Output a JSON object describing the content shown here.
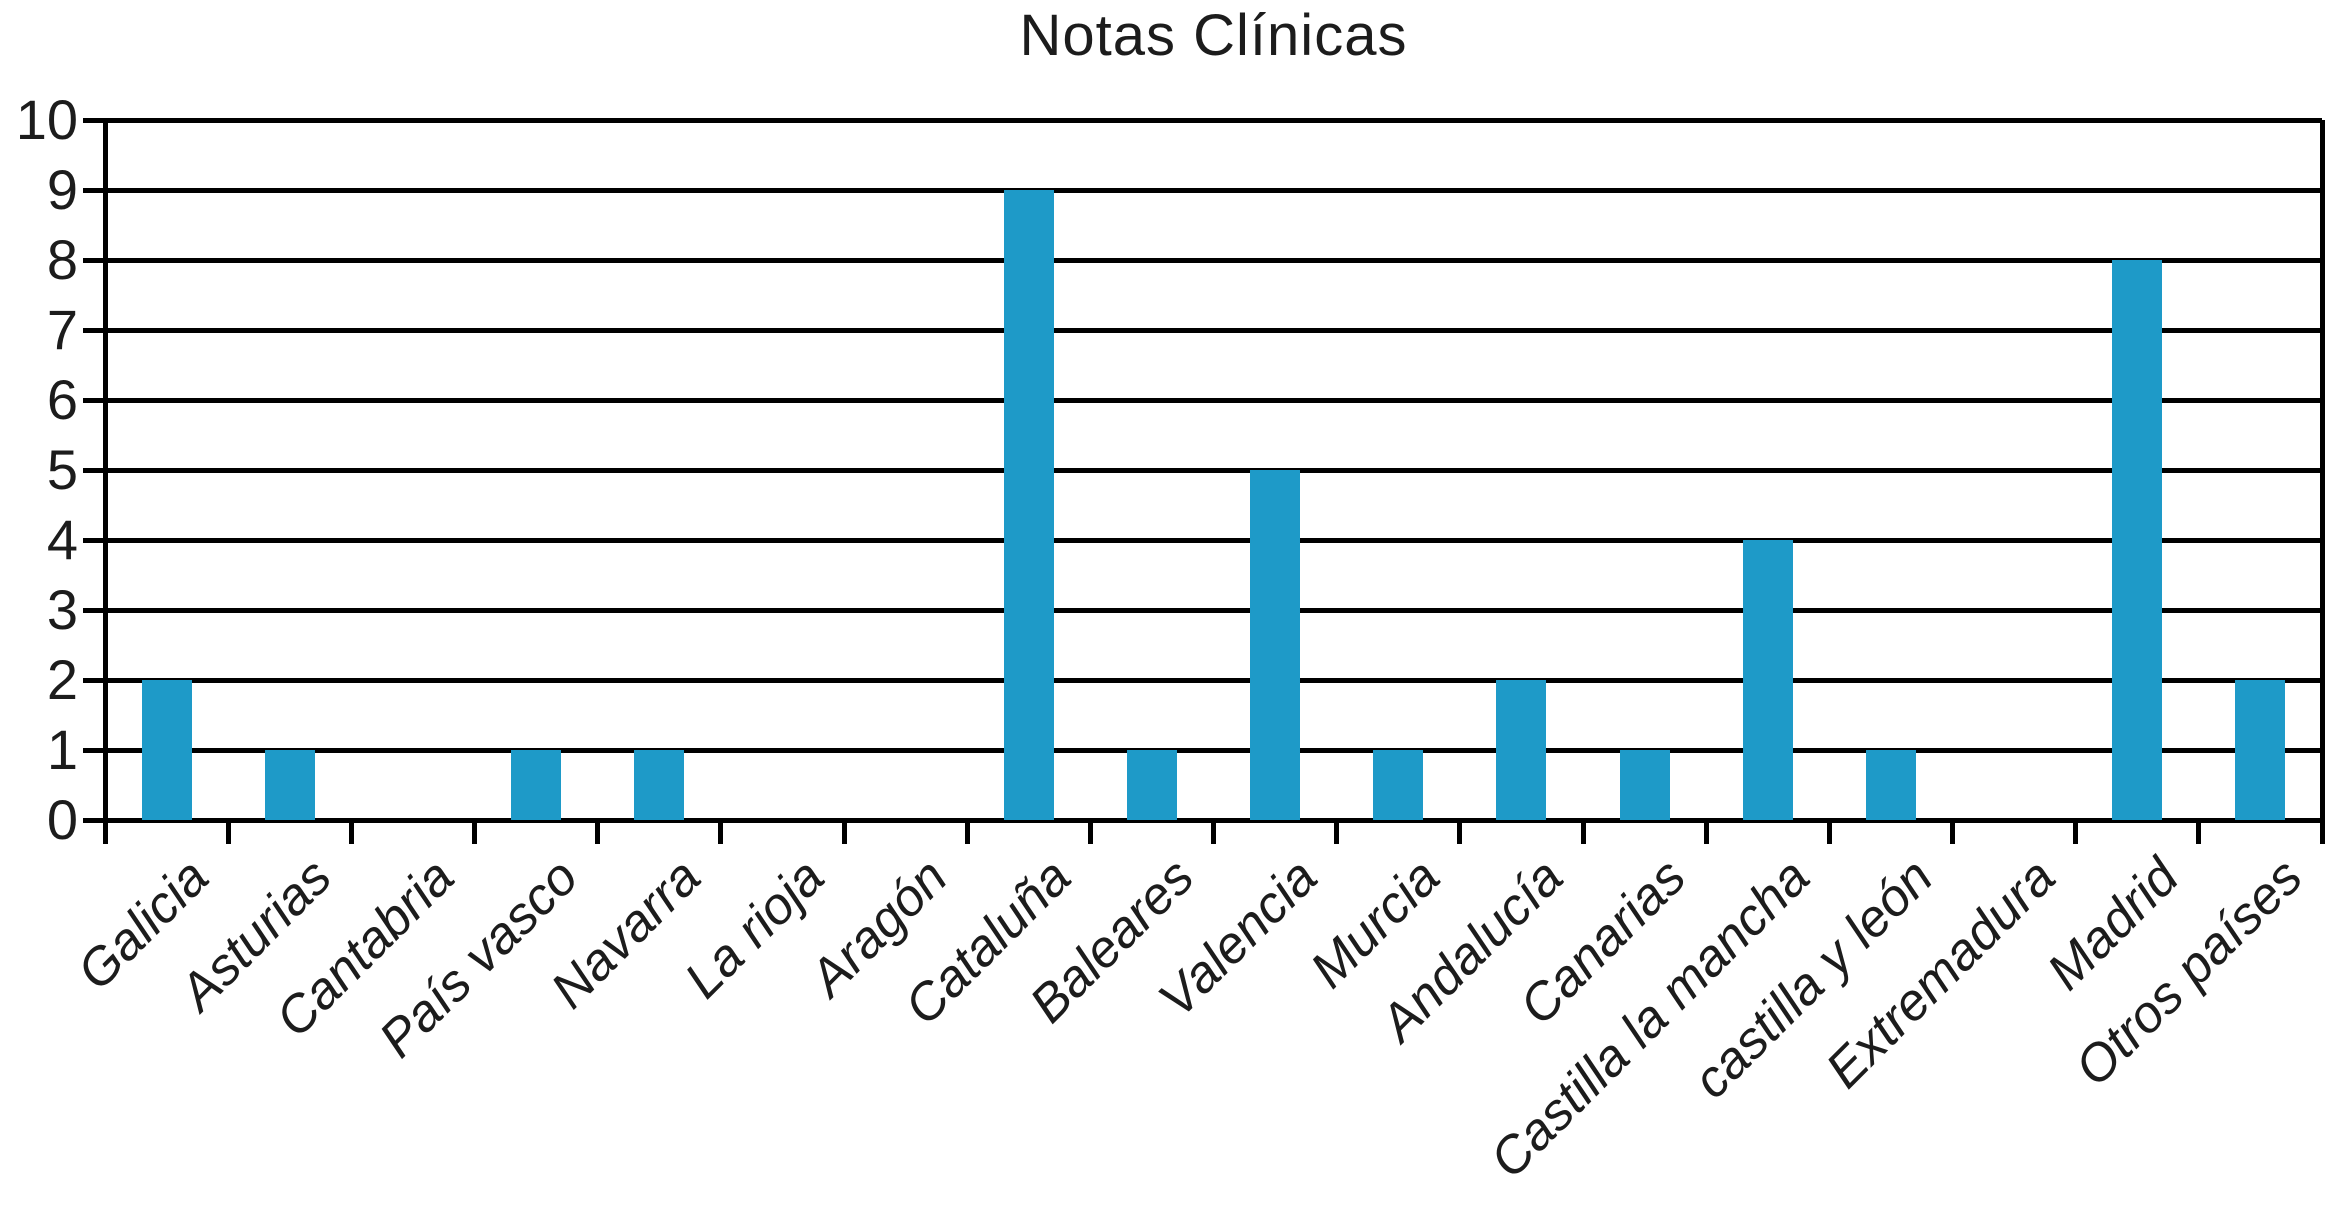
{
  "chart_data": {
    "type": "bar",
    "title": "Notas Clínicas",
    "categories": [
      "Galicia",
      "Asturias",
      "Cantabria",
      "País vasco",
      "Navarra",
      "La rioja",
      "Aragón",
      "Cataluña",
      "Baleares",
      "Valencia",
      "Murcia",
      "Andalucía",
      "Canarias",
      "Castilla la mancha",
      "castilla y león",
      "Extremadura",
      "Madrid",
      "Otros países"
    ],
    "values": [
      2,
      1,
      0,
      1,
      1,
      0,
      0,
      9,
      1,
      5,
      1,
      2,
      1,
      4,
      1,
      0,
      8,
      2
    ],
    "xlabel": "",
    "ylabel": "",
    "ylim": [
      0,
      10
    ],
    "yticks": [
      0,
      1,
      2,
      3,
      4,
      5,
      6,
      7,
      8,
      9,
      10
    ],
    "grid": "horizontal",
    "legend": "none",
    "bar_color": "#1e9ac8",
    "line_color": "#000000",
    "text_color": "#1c1c1c",
    "background": "#ffffff"
  }
}
